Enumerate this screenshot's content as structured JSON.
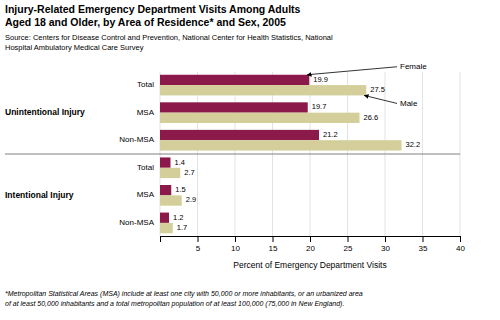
{
  "chart_data": {
    "type": "bar",
    "orientation": "horizontal",
    "title": [
      "Injury-Related Emergency Department Visits Among Adults",
      "Aged 18 and Older, by Area of Residence* and Sex, 2005"
    ],
    "source": [
      "Source: Centers for Disease Control and Prevention, National Center for Health Statistics, National",
      "Hospital Ambulatory Medical Care Survey"
    ],
    "footnote": [
      "*Metropolitan Statistical Areas (MSA) include at least one city with 50,000 or more inhabitants, or an urbanized area",
      "of at least 50,000 inhabitants and a total metropolitan population of at least 100,000 (75,000 in New England)."
    ],
    "xlabel": "Percent of Emergency Department Visits",
    "categories": [
      "Total",
      "MSA",
      "Non-MSA",
      "Total",
      "MSA",
      "Non-MSA"
    ],
    "groups": [
      "Unintentional Injury",
      "Unintentional Injury",
      "Unintentional Injury",
      "Intentional Injury",
      "Intentional Injury",
      "Intentional Injury"
    ],
    "series": [
      {
        "name": "Female",
        "color": "#8B1A4A",
        "values": [
          19.9,
          19.7,
          21.2,
          1.4,
          1.5,
          1.2
        ]
      },
      {
        "name": "Male",
        "color": "#D4CF9A",
        "values": [
          27.5,
          26.6,
          32.2,
          2.7,
          2.9,
          1.7
        ]
      }
    ],
    "xlim": [
      0,
      40
    ],
    "xticks": [
      {
        "value": 0,
        "label": null
      },
      5,
      10,
      15,
      20,
      25,
      30,
      35,
      40
    ],
    "grid": true,
    "data_labels": true
  }
}
